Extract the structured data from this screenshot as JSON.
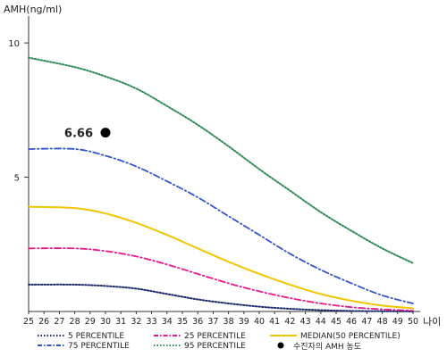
{
  "chart_data": {
    "type": "line",
    "title": "",
    "ylabel": "AMH(ng/ml)",
    "xlabel": "나이",
    "xlim": [
      25,
      50
    ],
    "ylim": [
      0,
      11
    ],
    "x_ticks": [
      25,
      26,
      27,
      28,
      29,
      30,
      31,
      32,
      33,
      34,
      35,
      36,
      37,
      38,
      39,
      40,
      41,
      42,
      43,
      44,
      45,
      46,
      47,
      48,
      49,
      50
    ],
    "y_ticks": [
      5,
      10
    ],
    "grid": false,
    "legend": "bottom",
    "x": [
      25,
      28,
      30,
      32,
      34,
      36,
      38,
      40,
      42,
      44,
      46,
      48,
      50
    ],
    "series": [
      {
        "name": "5 PERCENTILE",
        "color": "#1a2a6c",
        "dash": "dotted",
        "values": [
          1.0,
          1.0,
          0.95,
          0.85,
          0.65,
          0.45,
          0.3,
          0.18,
          0.1,
          0.05,
          0.02,
          0.01,
          0.0
        ]
      },
      {
        "name": "25 PERCENTILE",
        "color": "#e6198c",
        "dash": "dashdot",
        "values": [
          2.35,
          2.35,
          2.25,
          2.05,
          1.75,
          1.4,
          1.05,
          0.75,
          0.5,
          0.3,
          0.16,
          0.08,
          0.03
        ]
      },
      {
        "name": "MEDIAN(50 PERCENTILE)",
        "color": "#f2c500",
        "dash": "solid",
        "values": [
          3.9,
          3.85,
          3.65,
          3.3,
          2.85,
          2.35,
          1.85,
          1.4,
          1.0,
          0.65,
          0.4,
          0.22,
          0.12
        ]
      },
      {
        "name": "75 PERCENTILE",
        "color": "#3355cc",
        "dash": "dashdot",
        "values": [
          6.05,
          6.05,
          5.8,
          5.4,
          4.85,
          4.25,
          3.55,
          2.85,
          2.15,
          1.55,
          1.05,
          0.6,
          0.3
        ]
      },
      {
        "name": "95 PERCENTILE",
        "color": "#2e8b57",
        "dash": "dotted",
        "values": [
          9.45,
          9.1,
          8.75,
          8.3,
          7.65,
          6.95,
          6.15,
          5.3,
          4.5,
          3.7,
          3.0,
          2.35,
          1.8
        ]
      }
    ],
    "marker": {
      "name": "수진자의 AMH 농도",
      "x": 30,
      "y": 6.66,
      "label": "6.66",
      "color": "#000000"
    }
  }
}
